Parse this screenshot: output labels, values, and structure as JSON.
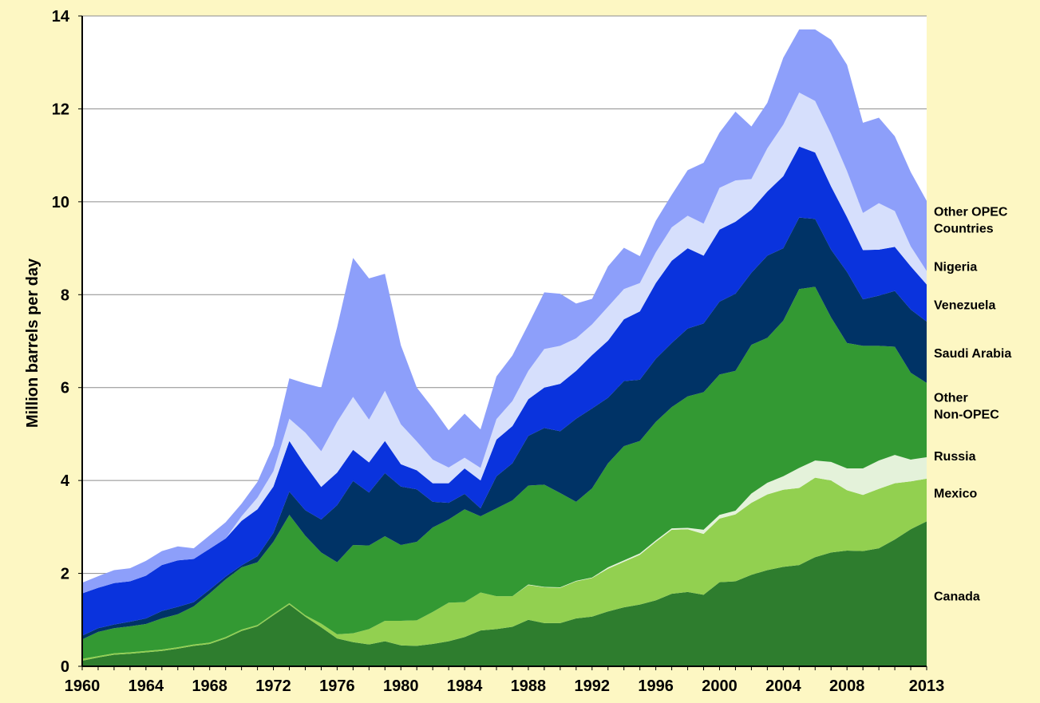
{
  "chart_data": {
    "type": "area",
    "stacked": true,
    "title": "",
    "xlabel": "",
    "ylabel": "Million barrels per day",
    "ylim": [
      0,
      14
    ],
    "xlim": [
      1960,
      2013
    ],
    "grid": "horizontal",
    "legend_placement": "right, labels beside stacked areas",
    "x_tick_labels": [
      "1960",
      "1964",
      "1968",
      "1972",
      "1976",
      "1980",
      "1984",
      "1988",
      "1992",
      "1996",
      "2000",
      "2004",
      "2008",
      "2013"
    ],
    "y_tick_labels": [
      "0",
      "2",
      "4",
      "6",
      "8",
      "10",
      "12",
      "14"
    ],
    "x": [
      1960,
      1961,
      1962,
      1963,
      1964,
      1965,
      1966,
      1967,
      1968,
      1969,
      1970,
      1971,
      1972,
      1973,
      1974,
      1975,
      1976,
      1977,
      1978,
      1979,
      1980,
      1981,
      1982,
      1983,
      1984,
      1985,
      1986,
      1987,
      1988,
      1989,
      1990,
      1991,
      1992,
      1993,
      1994,
      1995,
      1996,
      1997,
      1998,
      1999,
      2000,
      2001,
      2002,
      2003,
      2004,
      2005,
      2006,
      2007,
      2008,
      2009,
      2010,
      2011,
      2012,
      2013
    ],
    "series": [
      {
        "name": "Canada",
        "label": "Canada",
        "color": "#2e7d2e",
        "values": [
          0.12,
          0.19,
          0.25,
          0.27,
          0.3,
          0.33,
          0.38,
          0.44,
          0.48,
          0.6,
          0.76,
          0.86,
          1.1,
          1.33,
          1.07,
          0.84,
          0.6,
          0.52,
          0.47,
          0.54,
          0.45,
          0.44,
          0.48,
          0.54,
          0.63,
          0.77,
          0.8,
          0.85,
          1.0,
          0.93,
          0.93,
          1.03,
          1.07,
          1.18,
          1.27,
          1.33,
          1.42,
          1.56,
          1.6,
          1.54,
          1.81,
          1.83,
          1.97,
          2.07,
          2.14,
          2.18,
          2.35,
          2.45,
          2.49,
          2.48,
          2.54,
          2.73,
          2.95,
          3.12
        ]
      },
      {
        "name": "Mexico",
        "label": "Mexico",
        "color": "#92d050",
        "values": [
          0.04,
          0.03,
          0.03,
          0.03,
          0.03,
          0.03,
          0.03,
          0.03,
          0.03,
          0.03,
          0.03,
          0.03,
          0.03,
          0.03,
          0.03,
          0.08,
          0.09,
          0.19,
          0.33,
          0.44,
          0.53,
          0.55,
          0.69,
          0.83,
          0.75,
          0.82,
          0.71,
          0.66,
          0.75,
          0.77,
          0.76,
          0.8,
          0.83,
          0.92,
          0.98,
          1.07,
          1.26,
          1.38,
          1.35,
          1.31,
          1.37,
          1.44,
          1.55,
          1.63,
          1.66,
          1.66,
          1.71,
          1.55,
          1.3,
          1.21,
          1.28,
          1.21,
          1.03,
          0.92
        ]
      },
      {
        "name": "Russia",
        "label": "Russia",
        "color": "#e4f2da",
        "values": [
          0,
          0,
          0,
          0,
          0,
          0,
          0,
          0,
          0,
          0,
          0,
          0,
          0,
          0,
          0,
          0,
          0,
          0,
          0,
          0,
          0,
          0,
          0,
          0,
          0,
          0,
          0,
          0,
          0.01,
          0.01,
          0.01,
          0.01,
          0.01,
          0.03,
          0.03,
          0.03,
          0.03,
          0.03,
          0.03,
          0.09,
          0.08,
          0.08,
          0.2,
          0.25,
          0.29,
          0.43,
          0.37,
          0.4,
          0.47,
          0.57,
          0.61,
          0.61,
          0.47,
          0.46
        ]
      },
      {
        "name": "Other Non-OPEC",
        "label": "Other\nNon-OPEC",
        "color": "#339933",
        "values": [
          0.42,
          0.52,
          0.54,
          0.56,
          0.58,
          0.67,
          0.71,
          0.82,
          1.06,
          1.24,
          1.34,
          1.35,
          1.55,
          1.9,
          1.71,
          1.53,
          1.55,
          1.9,
          1.8,
          1.82,
          1.63,
          1.69,
          1.82,
          1.79,
          2.0,
          1.64,
          1.89,
          2.06,
          2.13,
          2.2,
          2.03,
          1.7,
          1.92,
          2.24,
          2.46,
          2.42,
          2.55,
          2.61,
          2.83,
          2.96,
          3.02,
          3.01,
          3.2,
          3.12,
          3.35,
          3.85,
          3.74,
          3.11,
          2.7,
          2.64,
          2.47,
          2.33,
          1.87,
          1.6
        ]
      },
      {
        "name": "Saudi Arabia",
        "label": "Saudi Arabia",
        "color": "#003366",
        "values": [
          0.08,
          0.08,
          0.08,
          0.1,
          0.12,
          0.16,
          0.16,
          0.09,
          0.08,
          0.06,
          0.04,
          0.13,
          0.19,
          0.5,
          0.55,
          0.71,
          1.23,
          1.38,
          1.14,
          1.36,
          1.26,
          1.13,
          0.55,
          0.36,
          0.33,
          0.17,
          0.69,
          0.8,
          1.07,
          1.22,
          1.33,
          1.79,
          1.72,
          1.41,
          1.4,
          1.32,
          1.36,
          1.38,
          1.46,
          1.48,
          1.57,
          1.66,
          1.55,
          1.77,
          1.56,
          1.54,
          1.46,
          1.46,
          1.53,
          1.0,
          1.08,
          1.2,
          1.36,
          1.32
        ]
      },
      {
        "name": "Venezuela",
        "label": "Venezuela",
        "color": "#0a33dd",
        "values": [
          0.91,
          0.87,
          0.89,
          0.87,
          0.92,
          0.99,
          1.0,
          0.93,
          0.88,
          0.82,
          0.96,
          1.01,
          1.0,
          1.09,
          0.97,
          0.7,
          0.7,
          0.67,
          0.65,
          0.69,
          0.48,
          0.41,
          0.4,
          0.42,
          0.55,
          0.6,
          0.79,
          0.8,
          0.79,
          0.87,
          1.02,
          1.03,
          1.15,
          1.23,
          1.33,
          1.47,
          1.63,
          1.77,
          1.73,
          1.46,
          1.55,
          1.55,
          1.36,
          1.38,
          1.55,
          1.53,
          1.43,
          1.36,
          1.18,
          1.06,
          0.99,
          0.95,
          0.93,
          0.8
        ]
      },
      {
        "name": "Nigeria",
        "label": "Nigeria",
        "color": "#d6dffc",
        "values": [
          0,
          0,
          0,
          0,
          0,
          0,
          0,
          0,
          0,
          0,
          0.1,
          0.25,
          0.33,
          0.48,
          0.7,
          0.77,
          1.09,
          1.14,
          0.92,
          1.08,
          0.86,
          0.62,
          0.51,
          0.34,
          0.23,
          0.27,
          0.44,
          0.54,
          0.61,
          0.83,
          0.82,
          0.7,
          0.66,
          0.73,
          0.65,
          0.61,
          0.66,
          0.72,
          0.7,
          0.69,
          0.9,
          0.89,
          0.66,
          0.93,
          1.11,
          1.16,
          1.11,
          1.13,
          0.99,
          0.8,
          1.0,
          0.77,
          0.43,
          0.29
        ]
      },
      {
        "name": "Other OPEC Countries",
        "label": "Other OPEC\nCountries",
        "color": "#8d9ffa",
        "values": [
          0.23,
          0.25,
          0.28,
          0.28,
          0.32,
          0.3,
          0.3,
          0.23,
          0.29,
          0.35,
          0.27,
          0.34,
          0.55,
          0.87,
          1.06,
          1.37,
          2.04,
          2.99,
          3.04,
          2.52,
          1.7,
          1.16,
          1.11,
          0.8,
          0.95,
          0.83,
          0.92,
          0.98,
          1.0,
          1.22,
          1.12,
          0.75,
          0.55,
          0.87,
          0.89,
          0.58,
          0.68,
          0.7,
          0.98,
          1.31,
          1.19,
          1.48,
          1.13,
          0.98,
          1.44,
          1.36,
          1.54,
          2.03,
          2.29,
          1.94,
          1.84,
          1.61,
          1.6,
          1.51
        ]
      }
    ]
  }
}
